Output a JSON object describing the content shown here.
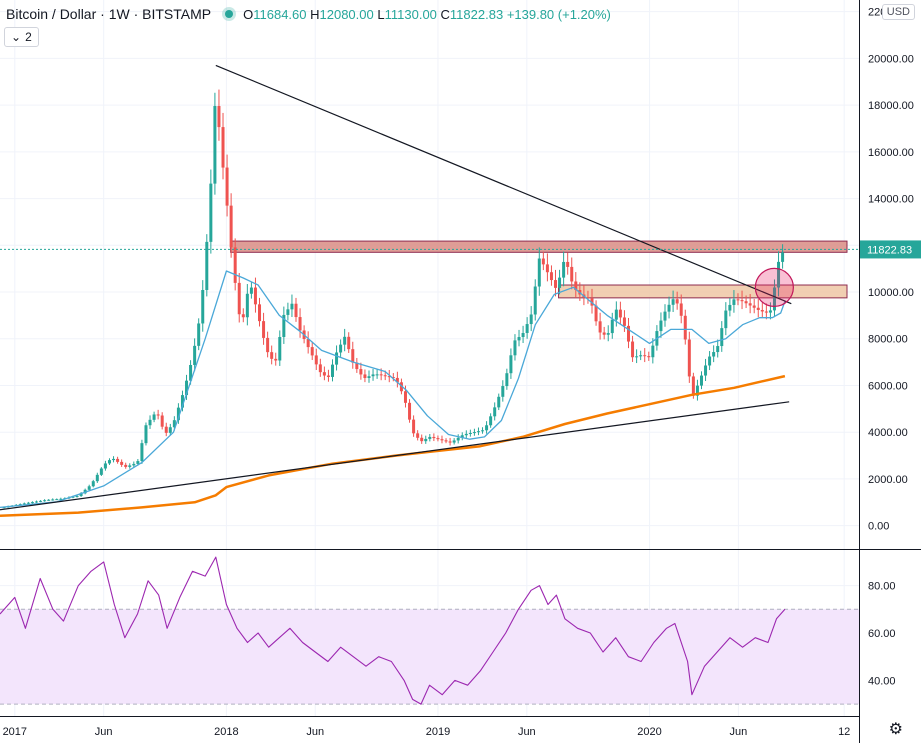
{
  "header": {
    "symbol": "Bitcoin / Dollar · 1W · BITSTAMP",
    "o_label": "O",
    "o_value": "11684.60",
    "h_label": "H",
    "h_value": "12080.00",
    "l_label": "L",
    "l_value": "11130.00",
    "c_label": "C",
    "c_value": "11822.83",
    "change": "+139.80 (+1.20%)",
    "indicator_count": "2",
    "currency": "USD"
  },
  "colors": {
    "up": "#26a69a",
    "down": "#ef5350",
    "ma_fast": "#4aa8d8",
    "ma_slow": "#f57c00",
    "rsi": "#9c27b0",
    "rsi_band": "#f3e5fc",
    "zone_upper": "#d98c84",
    "zone_lower": "#efc7a4"
  },
  "chart_data": [
    {
      "type": "candlestick",
      "title": "Bitcoin / Dollar, 1W, BITSTAMP",
      "ylim": [
        -1000,
        22500
      ],
      "y_ticks": [
        "0.00",
        "2000.00",
        "4000.00",
        "6000.00",
        "8000.00",
        "10000.00",
        "12000.00",
        "14000.00",
        "16000.00",
        "18000.00",
        "20000.00",
        "22000.00"
      ],
      "last_price_label": "11822.83",
      "last_price": 11822.83,
      "x_ticks": [
        "2017",
        "Jun",
        "2018",
        "Jun",
        "2019",
        "Jun",
        "2020",
        "Jun",
        "12"
      ],
      "x_tick_years": [
        2017.0,
        2017.42,
        2018.0,
        2018.42,
        2019.0,
        2019.42,
        2020.0,
        2020.42,
        2020.92
      ],
      "xlim": [
        2016.93,
        2020.99
      ],
      "price_path": [
        [
          2016.93,
          760
        ],
        [
          2017.05,
          960
        ],
        [
          2017.15,
          1100
        ],
        [
          2017.22,
          1150
        ],
        [
          2017.3,
          1280
        ],
        [
          2017.36,
          1750
        ],
        [
          2017.42,
          2600
        ],
        [
          2017.46,
          2900
        ],
        [
          2017.52,
          2500
        ],
        [
          2017.58,
          2700
        ],
        [
          2017.62,
          4300
        ],
        [
          2017.67,
          4900
        ],
        [
          2017.71,
          3900
        ],
        [
          2017.75,
          4400
        ],
        [
          2017.8,
          5800
        ],
        [
          2017.84,
          7200
        ],
        [
          2017.88,
          9200
        ],
        [
          2017.92,
          13500
        ],
        [
          2017.95,
          18700
        ],
        [
          2017.97,
          16500
        ],
        [
          2018.0,
          14000
        ],
        [
          2018.03,
          11200
        ],
        [
          2018.07,
          8400
        ],
        [
          2018.11,
          10500
        ],
        [
          2018.15,
          9000
        ],
        [
          2018.19,
          7500
        ],
        [
          2018.23,
          6900
        ],
        [
          2018.27,
          9000
        ],
        [
          2018.31,
          9500
        ],
        [
          2018.35,
          8300
        ],
        [
          2018.4,
          7400
        ],
        [
          2018.44,
          6600
        ],
        [
          2018.48,
          6300
        ],
        [
          2018.52,
          7400
        ],
        [
          2018.56,
          8100
        ],
        [
          2018.6,
          6900
        ],
        [
          2018.65,
          6300
        ],
        [
          2018.7,
          6500
        ],
        [
          2018.75,
          6400
        ],
        [
          2018.8,
          6300
        ],
        [
          2018.84,
          5500
        ],
        [
          2018.88,
          4000
        ],
        [
          2018.92,
          3600
        ],
        [
          2018.96,
          3800
        ],
        [
          2019.0,
          3700
        ],
        [
          2019.06,
          3550
        ],
        [
          2019.12,
          3900
        ],
        [
          2019.17,
          4000
        ],
        [
          2019.22,
          4100
        ],
        [
          2019.27,
          5100
        ],
        [
          2019.32,
          6300
        ],
        [
          2019.36,
          7900
        ],
        [
          2019.4,
          8200
        ],
        [
          2019.44,
          9000
        ],
        [
          2019.48,
          11500
        ],
        [
          2019.52,
          10800
        ],
        [
          2019.56,
          10100
        ],
        [
          2019.6,
          11500
        ],
        [
          2019.64,
          10200
        ],
        [
          2019.68,
          9800
        ],
        [
          2019.72,
          9700
        ],
        [
          2019.76,
          8300
        ],
        [
          2019.8,
          8100
        ],
        [
          2019.84,
          9300
        ],
        [
          2019.88,
          8600
        ],
        [
          2019.92,
          7200
        ],
        [
          2019.96,
          7300
        ],
        [
          2020.0,
          7200
        ],
        [
          2020.04,
          8500
        ],
        [
          2020.08,
          9300
        ],
        [
          2020.12,
          9800
        ],
        [
          2020.16,
          8700
        ],
        [
          2020.2,
          5400
        ],
        [
          2020.24,
          6300
        ],
        [
          2020.28,
          7200
        ],
        [
          2020.32,
          7600
        ],
        [
          2020.36,
          9200
        ],
        [
          2020.4,
          9700
        ],
        [
          2020.44,
          9600
        ],
        [
          2020.48,
          9400
        ],
        [
          2020.52,
          9200
        ],
        [
          2020.56,
          9100
        ],
        [
          2020.58,
          9300
        ],
        [
          2020.6,
          11000
        ],
        [
          2020.62,
          11600
        ],
        [
          2020.64,
          11822.83
        ]
      ],
      "ma_fast_path": [
        [
          2016.93,
          780
        ],
        [
          2017.2,
          1020
        ],
        [
          2017.42,
          1700
        ],
        [
          2017.6,
          2700
        ],
        [
          2017.75,
          4000
        ],
        [
          2017.9,
          8000
        ],
        [
          2018.0,
          10900
        ],
        [
          2018.08,
          10600
        ],
        [
          2018.15,
          10300
        ],
        [
          2018.25,
          9000
        ],
        [
          2018.35,
          8300
        ],
        [
          2018.45,
          7500
        ],
        [
          2018.6,
          7000
        ],
        [
          2018.75,
          6600
        ],
        [
          2018.85,
          5800
        ],
        [
          2018.95,
          4700
        ],
        [
          2019.05,
          3900
        ],
        [
          2019.15,
          3700
        ],
        [
          2019.22,
          3800
        ],
        [
          2019.3,
          4500
        ],
        [
          2019.38,
          6300
        ],
        [
          2019.46,
          8600
        ],
        [
          2019.55,
          9900
        ],
        [
          2019.64,
          10200
        ],
        [
          2019.72,
          9600
        ],
        [
          2019.8,
          9000
        ],
        [
          2019.9,
          8400
        ],
        [
          2020.0,
          7800
        ],
        [
          2020.1,
          8400
        ],
        [
          2020.2,
          8400
        ],
        [
          2020.28,
          7800
        ],
        [
          2020.36,
          8000
        ],
        [
          2020.44,
          8600
        ],
        [
          2020.52,
          8900
        ],
        [
          2020.58,
          8900
        ],
        [
          2020.62,
          9100
        ],
        [
          2020.64,
          9600
        ]
      ],
      "ma_slow_path": [
        [
          2016.93,
          420
        ],
        [
          2017.3,
          560
        ],
        [
          2017.6,
          780
        ],
        [
          2017.85,
          1000
        ],
        [
          2017.95,
          1300
        ],
        [
          2018.0,
          1650
        ],
        [
          2018.2,
          2150
        ],
        [
          2018.5,
          2650
        ],
        [
          2018.8,
          3000
        ],
        [
          2019.0,
          3200
        ],
        [
          2019.2,
          3400
        ],
        [
          2019.4,
          3800
        ],
        [
          2019.6,
          4350
        ],
        [
          2019.8,
          4800
        ],
        [
          2020.0,
          5200
        ],
        [
          2020.2,
          5600
        ],
        [
          2020.4,
          5900
        ],
        [
          2020.64,
          6400
        ]
      ],
      "trendline_down": [
        [
          2017.95,
          19700
        ],
        [
          2020.67,
          9500
        ]
      ],
      "trendline_up": [
        [
          2016.93,
          680
        ],
        [
          2020.66,
          5300
        ]
      ],
      "zone_upper": {
        "x_from": 2018.02,
        "x_to": 2020.99,
        "y_from": 11700,
        "y_to": 12180
      },
      "zone_lower": {
        "x_from": 2019.57,
        "x_to": 2020.99,
        "y_from": 9750,
        "y_to": 10300
      },
      "highlight_circle": {
        "x": 2020.59,
        "y": 10200
      }
    },
    {
      "type": "line",
      "title": "RSI",
      "ylim": [
        25,
        95
      ],
      "y_ticks": [
        "40.00",
        "60.00",
        "80.00"
      ],
      "upper_band": 70,
      "lower_band": 30,
      "values_path": [
        [
          2016.93,
          68
        ],
        [
          2017.0,
          75
        ],
        [
          2017.05,
          62
        ],
        [
          2017.12,
          83
        ],
        [
          2017.18,
          70
        ],
        [
          2017.23,
          65
        ],
        [
          2017.3,
          80
        ],
        [
          2017.36,
          86
        ],
        [
          2017.42,
          90
        ],
        [
          2017.47,
          72
        ],
        [
          2017.52,
          58
        ],
        [
          2017.58,
          68
        ],
        [
          2017.63,
          82
        ],
        [
          2017.68,
          76
        ],
        [
          2017.72,
          62
        ],
        [
          2017.78,
          75
        ],
        [
          2017.84,
          86
        ],
        [
          2017.9,
          84
        ],
        [
          2017.95,
          92
        ],
        [
          2018.0,
          72
        ],
        [
          2018.05,
          62
        ],
        [
          2018.1,
          56
        ],
        [
          2018.15,
          60
        ],
        [
          2018.2,
          54
        ],
        [
          2018.25,
          58
        ],
        [
          2018.3,
          62
        ],
        [
          2018.36,
          56
        ],
        [
          2018.42,
          52
        ],
        [
          2018.48,
          48
        ],
        [
          2018.54,
          54
        ],
        [
          2018.6,
          50
        ],
        [
          2018.66,
          46
        ],
        [
          2018.72,
          50
        ],
        [
          2018.78,
          48
        ],
        [
          2018.84,
          40
        ],
        [
          2018.88,
          32
        ],
        [
          2018.92,
          30
        ],
        [
          2018.96,
          38
        ],
        [
          2019.02,
          34
        ],
        [
          2019.08,
          40
        ],
        [
          2019.14,
          38
        ],
        [
          2019.2,
          44
        ],
        [
          2019.26,
          52
        ],
        [
          2019.32,
          60
        ],
        [
          2019.38,
          70
        ],
        [
          2019.44,
          78
        ],
        [
          2019.48,
          80
        ],
        [
          2019.52,
          72
        ],
        [
          2019.56,
          76
        ],
        [
          2019.6,
          66
        ],
        [
          2019.66,
          62
        ],
        [
          2019.72,
          60
        ],
        [
          2019.78,
          52
        ],
        [
          2019.84,
          58
        ],
        [
          2019.9,
          50
        ],
        [
          2019.96,
          48
        ],
        [
          2020.02,
          56
        ],
        [
          2020.08,
          62
        ],
        [
          2020.12,
          64
        ],
        [
          2020.18,
          48
        ],
        [
          2020.2,
          34
        ],
        [
          2020.26,
          46
        ],
        [
          2020.32,
          52
        ],
        [
          2020.38,
          58
        ],
        [
          2020.44,
          54
        ],
        [
          2020.5,
          58
        ],
        [
          2020.56,
          56
        ],
        [
          2020.6,
          66
        ],
        [
          2020.64,
          70
        ]
      ]
    }
  ]
}
